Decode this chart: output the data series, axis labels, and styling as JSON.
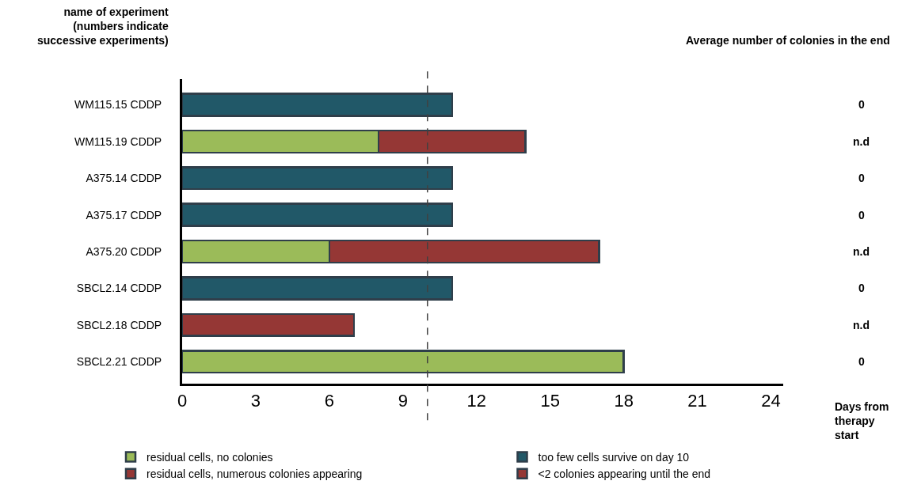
{
  "chart_data": {
    "type": "bar",
    "orientation": "horizontal",
    "stacked": true,
    "ylabel": "name of experiment (numbers indicate successive experiments)",
    "xlabel": "Days from therapy start",
    "categories": [
      "WM115.15 CDDP",
      "WM115.19 CDDP",
      "A375.14 CDDP",
      "A375.17 CDDP",
      "A375.20 CDDP",
      "SBCL2.14 CDDP",
      "SBCL2.18 CDDP",
      "SBCL2.21 CDDP"
    ],
    "series": [
      {
        "name": "residual cells, no colonies",
        "color": "#9bbb59",
        "values": [
          null,
          8,
          null,
          null,
          6,
          null,
          null,
          18
        ]
      },
      {
        "name": "too few cells survive on day 10",
        "color": "#215868",
        "values": [
          11,
          null,
          11,
          11,
          null,
          11,
          null,
          null
        ]
      },
      {
        "name": "residual cells, numerous colonies appearing",
        "color": "#953735",
        "values": [
          null,
          6,
          null,
          null,
          11,
          null,
          7,
          null
        ]
      },
      {
        "name": "<2 colonies appearing until the end",
        "color": "#953735",
        "values": [
          null,
          null,
          null,
          null,
          null,
          null,
          null,
          null
        ]
      }
    ],
    "xlim": [
      0,
      24.5
    ],
    "xticks": [
      0,
      3,
      6,
      9,
      12,
      15,
      18,
      21,
      24
    ],
    "ref_lines": [
      {
        "axis": "x",
        "value": 10,
        "color": "#404040",
        "line_style": "dashed"
      }
    ],
    "annotations": [
      "Average number of colonies in the end",
      "0",
      "n.d",
      "0",
      "0",
      "n.d",
      "0",
      "n.d",
      "0"
    ],
    "legend": "bottom"
  }
}
